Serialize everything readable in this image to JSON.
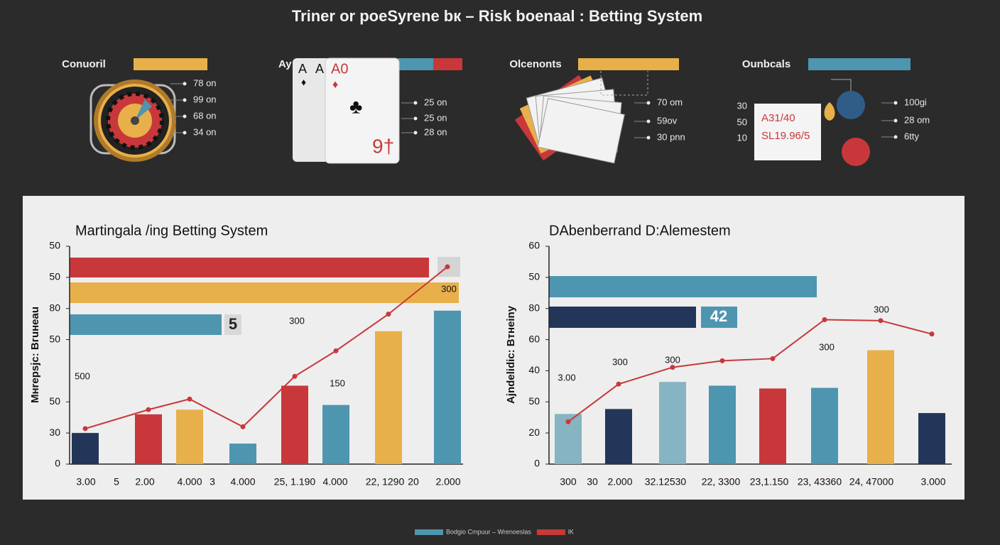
{
  "title": "Triner or poeSyrene bк – Risk boenaal : Betting System",
  "panels": [
    {
      "label": "Conuoril",
      "items": [
        "78 on",
        "99 on",
        "68 on",
        "34 on"
      ]
    },
    {
      "label": "Ay",
      "card_texts": [
        "A",
        "A",
        "A0",
        "9†"
      ],
      "items": [
        "25 on",
        "25 on",
        "28 on"
      ]
    },
    {
      "label": "Olcenonts",
      "items": [
        "70 om",
        "59ov",
        "30 pnn"
      ]
    },
    {
      "label": "Ounbcals",
      "note_numbers": [
        "30",
        "50",
        "10"
      ],
      "note_lines": [
        "A31/40",
        "SL19.96/5"
      ],
      "items": [
        "100gi",
        "28 om",
        "6tty"
      ]
    }
  ],
  "chart_data": [
    {
      "type": "bar",
      "title": "Martingala /ing Betting System",
      "y_label": "Mнrepsjc: Bгuнeau",
      "categories": [
        "3.00",
        "2.00",
        "4.000",
        "4.000",
        "25, 1.190",
        "4.000",
        "22, 1290",
        "2.000"
      ],
      "minor_labels": [
        "5",
        "3",
        "20"
      ],
      "bar_values": [
        10,
        16,
        17.5,
        6.6,
        25.2,
        19,
        42.7,
        49.3
      ],
      "bar_colors": [
        "#23365a",
        "#c8383a",
        "#e8b04a",
        "#4e95b0",
        "#c8383a",
        "#4e95b0",
        "#e8b04a",
        "#4e95b0"
      ],
      "line_values": [
        11.4,
        17.5,
        20.9,
        12,
        28.2,
        36.4,
        48.2,
        63.4
      ],
      "line_color": "#c8383a",
      "ylim": [
        0,
        70
      ],
      "yticks": [
        0,
        {
          "value": 10,
          "label": "30"
        },
        {
          "value": 20,
          "label": "50"
        },
        {
          "value": 40,
          "label": "50"
        },
        {
          "value": 50,
          "label": "80"
        },
        {
          "value": 60,
          "label": "50"
        },
        {
          "value": 70,
          "label": "50"
        }
      ],
      "annotations": [
        "500",
        "300",
        "150",
        "300"
      ],
      "bar_tags": [
        "5"
      ]
    },
    {
      "type": "bar",
      "title": "DAbenberrand D:Alemestem",
      "y_label": "Ajndelidic: Bтнeiny",
      "categories": [
        "300",
        "2.000",
        "32.12530",
        "22, 3300",
        "23,1.150",
        "23, 43360",
        "24, 47000",
        "3.000"
      ],
      "minor_labels": [
        "30"
      ],
      "bar_values": [
        16.1,
        17.7,
        26.4,
        25.2,
        24.3,
        24.5,
        36.6,
        16.4
      ],
      "bar_colors": [
        "#86b4c2",
        "#23365a",
        "#86b4c2",
        "#4e95b0",
        "#c8383a",
        "#4e95b0",
        "#e8b04a",
        "#23365a"
      ],
      "line_values": [
        13.6,
        25.7,
        31.1,
        33.2,
        33.9,
        46.4,
        46.1,
        41.8
      ],
      "line_color": "#c8383a",
      "ylim": [
        0,
        70
      ],
      "yticks": [
        0,
        {
          "value": 10,
          "label": "20"
        },
        {
          "value": 20,
          "label": "50"
        },
        {
          "value": 30,
          "label": "40"
        },
        {
          "value": 40,
          "label": "60"
        },
        {
          "value": 50,
          "label": "80"
        },
        {
          "value": 60,
          "label": "50"
        },
        {
          "value": 70,
          "label": "60"
        }
      ],
      "annotations": [
        "3.00",
        "300",
        "300",
        "300",
        "300"
      ],
      "bar_tags": [
        "42"
      ]
    }
  ],
  "legend": [
    {
      "label": "Bodgio Cmpuur – Wrenoeslas",
      "color": "#4e95b0"
    },
    {
      "label": "lK",
      "color": "#c8383a"
    }
  ]
}
